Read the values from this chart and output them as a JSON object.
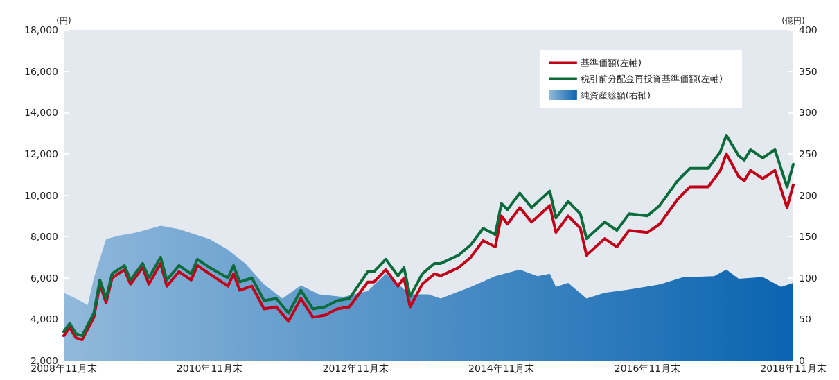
{
  "chart_data": {
    "type": "line",
    "ylabel": "(円)",
    "y2label": "(億円)",
    "xlim": [
      "2008-11",
      "2018-11"
    ],
    "xticks": [
      {
        "value": "2008-11",
        "label": "2008年11月末"
      },
      {
        "value": "2010-11",
        "label": "2010年11月末"
      },
      {
        "value": "2012-11",
        "label": "2012年11月末"
      },
      {
        "value": "2014-11",
        "label": "2014年11月末"
      },
      {
        "value": "2016-11",
        "label": "2016年11月末"
      },
      {
        "value": "2018-11",
        "label": "2018年11月末"
      }
    ],
    "ylim": [
      2000,
      18000
    ],
    "yticks": [
      {
        "value": 2000,
        "label": "2,000"
      },
      {
        "value": 4000,
        "label": "4,000"
      },
      {
        "value": 6000,
        "label": "6,000"
      },
      {
        "value": 8000,
        "label": "8,000"
      },
      {
        "value": 10000,
        "label": "10,000"
      },
      {
        "value": 12000,
        "label": "12,000"
      },
      {
        "value": 14000,
        "label": "14,000"
      },
      {
        "value": 16000,
        "label": "16,000"
      },
      {
        "value": 18000,
        "label": "18,000"
      }
    ],
    "y2lim": [
      0,
      400
    ],
    "y2ticks": [
      0,
      50,
      100,
      150,
      200,
      250,
      300,
      350,
      400
    ],
    "grid": false,
    "legend": "top right",
    "series": [
      {
        "name": "基準価額(左軸)",
        "color": "#c00018",
        "x": [
          "2008-11",
          "2008-12",
          "2009-01",
          "2009-02",
          "2009-04",
          "2009-05",
          "2009-06",
          "2009-07",
          "2009-09",
          "2009-10",
          "2009-12",
          "2010-01",
          "2010-03",
          "2010-04",
          "2010-06",
          "2010-08",
          "2010-09",
          "2010-11",
          "2011-02",
          "2011-03",
          "2011-04",
          "2011-06",
          "2011-08",
          "2011-10",
          "2011-12",
          "2012-02",
          "2012-04",
          "2012-06",
          "2012-08",
          "2012-10",
          "2013-01",
          "2013-02",
          "2013-04",
          "2013-06",
          "2013-07",
          "2013-08",
          "2013-10",
          "2013-12",
          "2014-01",
          "2014-04",
          "2014-06",
          "2014-08",
          "2014-10",
          "2014-11",
          "2014-12",
          "2015-02",
          "2015-04",
          "2015-07",
          "2015-08",
          "2015-10",
          "2015-12",
          "2016-01",
          "2016-04",
          "2016-06",
          "2016-08",
          "2016-11",
          "2017-01",
          "2017-04",
          "2017-06",
          "2017-09",
          "2017-11",
          "2017-12",
          "2018-02",
          "2018-03",
          "2018-04",
          "2018-06",
          "2018-08",
          "2018-10",
          "2018-11"
        ],
        "values": [
          3200,
          3600,
          3100,
          3000,
          4100,
          5700,
          4800,
          6000,
          6400,
          5700,
          6500,
          5700,
          6700,
          5600,
          6300,
          5900,
          6600,
          6200,
          5600,
          6200,
          5400,
          5600,
          4500,
          4600,
          3900,
          5000,
          4100,
          4200,
          4500,
          4600,
          5800,
          5800,
          6400,
          5600,
          6000,
          4600,
          5700,
          6200,
          6100,
          6500,
          7000,
          7800,
          7500,
          9000,
          8600,
          9400,
          8700,
          9500,
          8200,
          9000,
          8400,
          7100,
          7900,
          7500,
          8300,
          8200,
          8600,
          9800,
          10400,
          10400,
          11200,
          12000,
          10900,
          10700,
          11200,
          10800,
          11200,
          9400,
          10500
        ]
      },
      {
        "name": "税引前分配金再投資基準価額(左軸)",
        "color": "#0b6b3a",
        "x": [
          "2008-11",
          "2008-12",
          "2009-01",
          "2009-02",
          "2009-04",
          "2009-05",
          "2009-06",
          "2009-07",
          "2009-09",
          "2009-10",
          "2009-12",
          "2010-01",
          "2010-03",
          "2010-04",
          "2010-06",
          "2010-08",
          "2010-09",
          "2010-11",
          "2011-02",
          "2011-03",
          "2011-04",
          "2011-06",
          "2011-08",
          "2011-10",
          "2011-12",
          "2012-02",
          "2012-04",
          "2012-06",
          "2012-08",
          "2012-10",
          "2013-01",
          "2013-02",
          "2013-04",
          "2013-06",
          "2013-07",
          "2013-08",
          "2013-10",
          "2013-12",
          "2014-01",
          "2014-04",
          "2014-06",
          "2014-08",
          "2014-10",
          "2014-11",
          "2014-12",
          "2015-02",
          "2015-04",
          "2015-07",
          "2015-08",
          "2015-10",
          "2015-12",
          "2016-01",
          "2016-04",
          "2016-06",
          "2016-08",
          "2016-11",
          "2017-01",
          "2017-04",
          "2017-06",
          "2017-09",
          "2017-11",
          "2017-12",
          "2018-02",
          "2018-03",
          "2018-04",
          "2018-06",
          "2018-08",
          "2018-10",
          "2018-11"
        ],
        "values": [
          3400,
          3800,
          3300,
          3200,
          4300,
          5900,
          5000,
          6200,
          6600,
          5900,
          6700,
          6000,
          7000,
          5900,
          6600,
          6200,
          6900,
          6500,
          6000,
          6600,
          5800,
          6000,
          4900,
          5000,
          4300,
          5400,
          4500,
          4600,
          4900,
          5000,
          6300,
          6300,
          6900,
          6100,
          6500,
          5100,
          6200,
          6700,
          6700,
          7100,
          7600,
          8400,
          8100,
          9600,
          9300,
          10100,
          9400,
          10200,
          8900,
          9700,
          9100,
          7900,
          8700,
          8300,
          9100,
          9000,
          9500,
          10700,
          11300,
          11300,
          12100,
          12900,
          11900,
          11700,
          12200,
          11800,
          12200,
          10400,
          11500
        ]
      },
      {
        "name": "純資産総額(右軸)",
        "type": "area",
        "axis": "y2",
        "color": "#0a64b0",
        "x": [
          "2008-11",
          "2009-01",
          "2009-03",
          "2009-04",
          "2009-06",
          "2009-08",
          "2009-11",
          "2010-03",
          "2010-06",
          "2010-11",
          "2011-02",
          "2011-05",
          "2011-08",
          "2011-11",
          "2012-02",
          "2012-05",
          "2012-09",
          "2013-01",
          "2013-04",
          "2013-08",
          "2013-11",
          "2014-01",
          "2014-06",
          "2014-10",
          "2015-02",
          "2015-05",
          "2015-07",
          "2015-08",
          "2015-10",
          "2016-01",
          "2016-04",
          "2016-08",
          "2017-01",
          "2017-05",
          "2017-10",
          "2017-12",
          "2018-02",
          "2018-06",
          "2018-09",
          "2018-11"
        ],
        "values": [
          82,
          75,
          67,
          100,
          147,
          151,
          155,
          163,
          159,
          147,
          134,
          117,
          92,
          75,
          91,
          80,
          77,
          84,
          105,
          80,
          80,
          75,
          89,
          102,
          110,
          102,
          105,
          89,
          94,
          75,
          82,
          86,
          92,
          101,
          102,
          110,
          99,
          101,
          89,
          94
        ]
      }
    ]
  }
}
